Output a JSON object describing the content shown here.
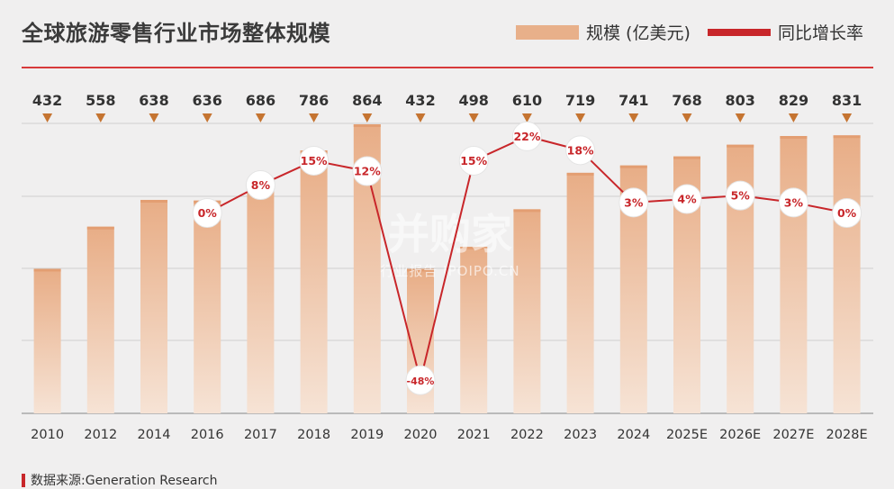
{
  "title": "全球旅游零售行业市场整体规模",
  "legend": {
    "bar_label": "规模 (亿美元)",
    "line_label": "同比增长率"
  },
  "source": "数据来源:Generation Research",
  "watermark": {
    "main": "并购家",
    "sub": "行业报告 IPOIPO.CN"
  },
  "colors": {
    "bar": "#e8b08a",
    "bar_fade": "#f6e2d3",
    "line": "#c8262a",
    "marker": "#c57431",
    "axis_text": "#333333"
  },
  "chart_data": {
    "type": "bar",
    "categories": [
      "2010",
      "2012",
      "2014",
      "2016",
      "2017",
      "2018",
      "2019",
      "2020",
      "2021",
      "2022",
      "2023",
      "2024",
      "2025E",
      "2026E",
      "2027E",
      "2028E"
    ],
    "series": [
      {
        "name": "规模 (亿美元)",
        "type": "bar",
        "values": [
          432,
          558,
          638,
          636,
          686,
          786,
          864,
          432,
          498,
          610,
          719,
          741,
          768,
          803,
          829,
          831
        ],
        "value_labels": [
          "432",
          "558",
          "638",
          "636",
          "686",
          "786",
          "864",
          "432",
          "498",
          "610",
          "719",
          "741",
          "768",
          "803",
          "829",
          "831"
        ]
      },
      {
        "name": "同比增长率",
        "type": "line",
        "values": [
          null,
          null,
          null,
          0,
          8,
          15,
          12,
          -48,
          15,
          22,
          18,
          3,
          4,
          5,
          3,
          0
        ],
        "value_labels": [
          null,
          null,
          null,
          "0%",
          "8%",
          "15%",
          "12%",
          "-48%",
          "15%",
          "22%",
          "18%",
          "3%",
          "4%",
          "5%",
          "3%",
          "0%"
        ]
      }
    ],
    "grid": true
  }
}
